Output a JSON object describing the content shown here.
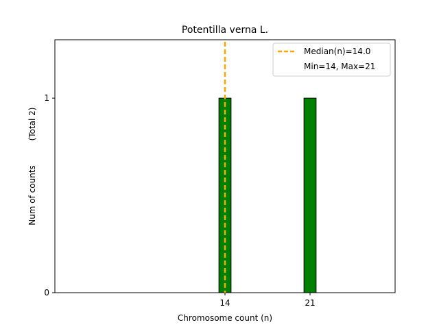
{
  "chart_data": {
    "type": "bar",
    "title": "Potentilla verna L.",
    "xlabel": "Chromosome count (n)",
    "ylabel": "Num of counts",
    "ylabel_secondary": "(Total 2)",
    "x_values": [
      14,
      21
    ],
    "values": [
      1,
      1
    ],
    "xticks": [
      "14",
      "21"
    ],
    "yticks": [
      "0",
      "1"
    ],
    "xlim": [
      0,
      28
    ],
    "ylim": [
      0,
      1.3
    ],
    "bar_width": 1,
    "bar_color": "#008000",
    "bar_edge_color": "#000000",
    "median": 14.0,
    "median_color": "#FFA500",
    "legend": {
      "position": "top-right",
      "entries": [
        "Median(n)=14.0",
        "Min=14, Max=21"
      ]
    },
    "grid": false
  }
}
